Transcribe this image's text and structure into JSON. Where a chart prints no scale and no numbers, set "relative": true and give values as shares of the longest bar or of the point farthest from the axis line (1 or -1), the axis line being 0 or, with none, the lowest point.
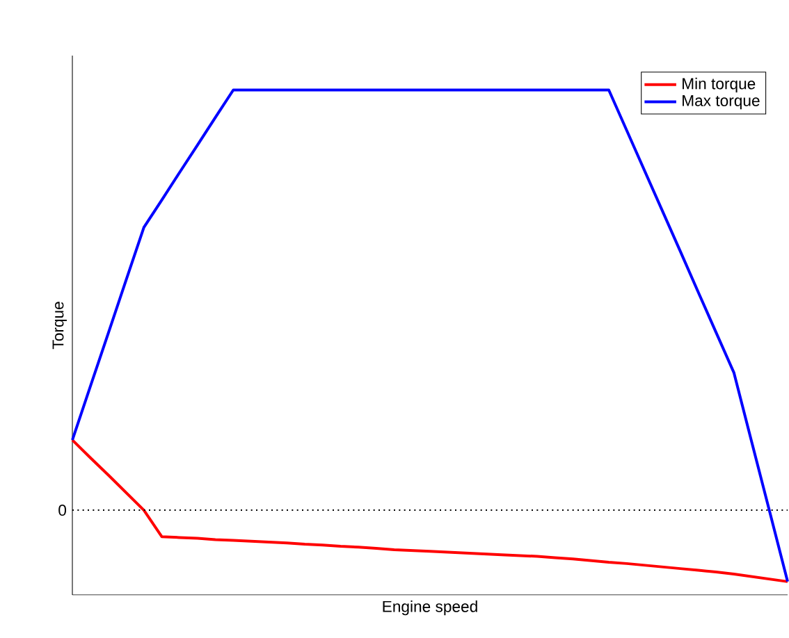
{
  "chart_data": {
    "type": "line",
    "relative": true,
    "xlabel": "Engine speed",
    "ylabel": "Torque",
    "legend": "top right",
    "marker": "none",
    "line_style": "solid",
    "categories": [
      null,
      null,
      null,
      null,
      null,
      null,
      null,
      null,
      null,
      null,
      null,
      null,
      null,
      null,
      null,
      null,
      null,
      null,
      null,
      null,
      null,
      null,
      null,
      null,
      null,
      null,
      null,
      null,
      null,
      null,
      null,
      null,
      null,
      null,
      null,
      null,
      null,
      null,
      null,
      null,
      null
    ],
    "ref_lines": [
      {
        "axis": "y",
        "value": 0,
        "label": "0",
        "line_style": "dotted",
        "color": "#000000"
      }
    ],
    "series": [
      {
        "name": "Min torque",
        "color": "#ff0000",
        "values": [
          0.167,
          0.125,
          0.084,
          0.042,
          0.0,
          -0.063,
          -0.065,
          -0.067,
          -0.07,
          -0.072,
          -0.074,
          -0.076,
          -0.078,
          -0.081,
          -0.083,
          -0.086,
          -0.088,
          -0.091,
          -0.094,
          -0.096,
          -0.098,
          -0.1,
          -0.102,
          -0.104,
          -0.106,
          -0.108,
          -0.11,
          -0.113,
          -0.116,
          -0.12,
          -0.124,
          -0.127,
          -0.131,
          -0.135,
          -0.139,
          -0.143,
          -0.147,
          -0.152,
          -0.158,
          -0.164,
          -0.17
        ]
      },
      {
        "name": "Max torque",
        "color": "#0000ff",
        "values": [
          0.167,
          0.294,
          0.42,
          0.547,
          0.673,
          0.738,
          0.804,
          0.869,
          0.935,
          1.0,
          1.0,
          1.0,
          1.0,
          1.0,
          1.0,
          1.0,
          1.0,
          1.0,
          1.0,
          1.0,
          1.0,
          1.0,
          1.0,
          1.0,
          1.0,
          1.0,
          1.0,
          1.0,
          1.0,
          1.0,
          1.0,
          0.904,
          0.808,
          0.712,
          0.616,
          0.519,
          0.423,
          0.327,
          0.161,
          -0.004,
          -0.17
        ]
      }
    ]
  }
}
